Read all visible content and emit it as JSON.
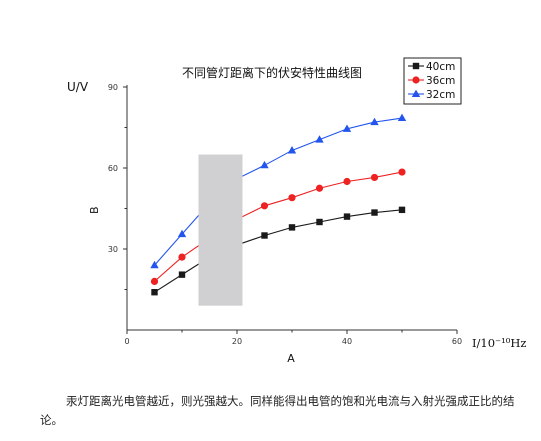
{
  "chart_data": {
    "type": "line",
    "title": "不同管灯距离下的伏安特性曲线图",
    "xlabel": "A",
    "ylabel": "B",
    "corner_ylabel": "U/V",
    "corner_xlabel": "I/10⁻¹⁰Hz",
    "xlim": [
      0,
      60
    ],
    "ylim": [
      0,
      90
    ],
    "xticks": [
      "0",
      "20",
      "40",
      "60"
    ],
    "yticks": [
      "30",
      "60",
      "90"
    ],
    "grid": false,
    "legend_position": "top-right",
    "x": [
      5,
      10,
      15,
      20,
      25,
      30,
      35,
      40,
      45,
      50
    ],
    "series": [
      {
        "name": "40cm",
        "color": "#1a1a1a",
        "marker": "square",
        "values": [
          14,
          20.5,
          27,
          31.5,
          35,
          38,
          40,
          42,
          43.5,
          44.5
        ]
      },
      {
        "name": "36cm",
        "color": "#ee2222",
        "marker": "circle",
        "values": [
          18,
          27,
          34,
          41,
          46,
          49,
          52.5,
          55,
          56.5,
          58.5
        ]
      },
      {
        "name": "32cm",
        "color": "#2255ee",
        "marker": "triangle",
        "values": [
          24,
          35.5,
          47,
          56,
          61,
          66.5,
          70.5,
          74.5,
          77,
          78.5
        ]
      }
    ],
    "occluder_color": "#d0d0d2"
  },
  "paragraph": "汞灯距离光电管越近，则光强越大。同样能得出电管的饱和光电流与入射光强成正比的结论。"
}
